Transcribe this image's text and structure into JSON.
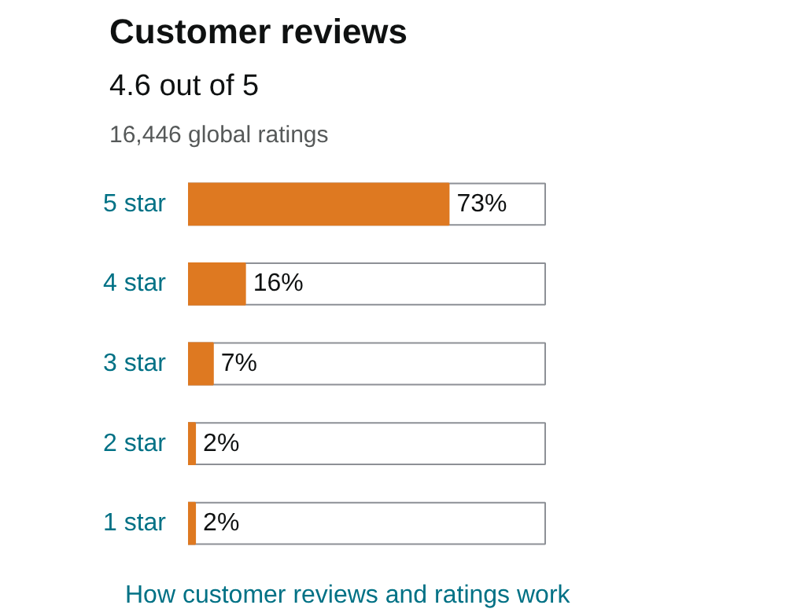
{
  "chart_data": {
    "type": "bar",
    "orientation": "horizontal",
    "title": "Customer reviews",
    "subtitle": "4.6 out of 5",
    "annotations": [
      "16,446 global ratings",
      "How customer reviews and ratings work"
    ],
    "categories": [
      "5 star",
      "4 star",
      "3 star",
      "2 star",
      "1 star"
    ],
    "values": [
      73,
      16,
      7,
      2,
      2
    ],
    "color": "#de7921",
    "value_labels": [
      "73%",
      "16%",
      "7%",
      "2%",
      "2%"
    ],
    "xlim": [
      0,
      100
    ],
    "tick_labels": "y",
    "grid": false
  }
}
